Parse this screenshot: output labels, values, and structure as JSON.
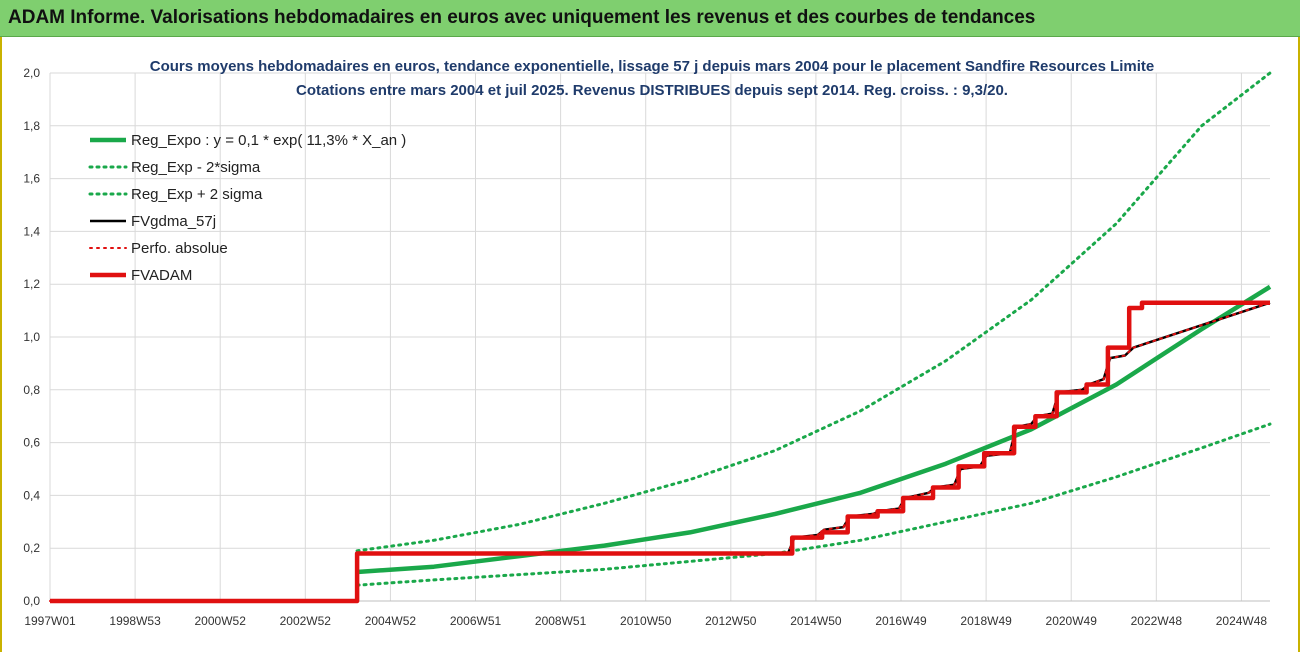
{
  "banner": {
    "title": "ADAM Informe. Valorisations hebdomadaires en euros avec uniquement les revenus et des courbes de tendances"
  },
  "colors": {
    "banner_bg": "#7fcf6f",
    "green": "#1aa84a",
    "black": "#000000",
    "red": "#e01010",
    "grid": "#d9d9d9"
  },
  "chart_data": {
    "type": "line",
    "title": "Cours moyens hebdomadaires en euros, tendance exponentielle, lissage 57 j depuis mars 2004 pour le placement Sandfire Resources Limite",
    "subtitle": "Cotations entre mars 2004 et juil 2025. Revenus DISTRIBUES depuis sept 2014. Reg. croiss. : 9,3/20.",
    "xlabel": "",
    "ylabel": "",
    "x_tick_labels": [
      "1997W01",
      "1998W53",
      "2000W52",
      "2002W52",
      "2004W52",
      "2006W51",
      "2008W51",
      "2010W50",
      "2012W50",
      "2014W50",
      "2016W49",
      "2018W49",
      "2020W49",
      "2022W48",
      "2024W48"
    ],
    "y_tick_labels": [
      "0,0",
      "0,2",
      "0,4",
      "0,6",
      "0,8",
      "1,0",
      "1,2",
      "1,4",
      "1,6",
      "1,8",
      "2,0"
    ],
    "xlim": [
      1997.0,
      2025.6
    ],
    "ylim": [
      0,
      2.0
    ],
    "grid": true,
    "legend_position": "top-left",
    "series": [
      {
        "name": "Reg_Expo : y = 0,1 * exp( 11,3% *  X_an )",
        "style": "solid-thick",
        "color": "#1aa84a",
        "x": [
          2004.2,
          2006,
          2008,
          2010,
          2012,
          2014,
          2016,
          2018,
          2020,
          2022,
          2024,
          2025.6
        ],
        "y": [
          0.11,
          0.13,
          0.17,
          0.21,
          0.26,
          0.33,
          0.41,
          0.52,
          0.65,
          0.82,
          1.03,
          1.19
        ]
      },
      {
        "name": "Reg_Exp - 2*sigma",
        "style": "dotted",
        "color": "#1aa84a",
        "x": [
          2004.2,
          2006,
          2008,
          2010,
          2012,
          2014,
          2016,
          2018,
          2020,
          2022,
          2024,
          2025.6
        ],
        "y": [
          0.06,
          0.08,
          0.1,
          0.12,
          0.15,
          0.18,
          0.23,
          0.3,
          0.37,
          0.47,
          0.58,
          0.67
        ]
      },
      {
        "name": "Reg_Exp + 2 sigma",
        "style": "dotted",
        "color": "#1aa84a",
        "x": [
          2004.2,
          2006,
          2008,
          2010,
          2012,
          2014,
          2016,
          2018,
          2020,
          2022,
          2024,
          2025.6
        ],
        "y": [
          0.19,
          0.23,
          0.29,
          0.37,
          0.46,
          0.57,
          0.72,
          0.91,
          1.14,
          1.43,
          1.8,
          2.0
        ]
      },
      {
        "name": "FVgdma_57j",
        "style": "solid",
        "color": "#000000",
        "x": [
          1997.0,
          2004.2,
          2004.2,
          2014.3,
          2014.45,
          2015.0,
          2015.15,
          2015.6,
          2015.75,
          2016.3,
          2016.45,
          2016.9,
          2017.05,
          2017.6,
          2017.75,
          2018.2,
          2018.35,
          2018.8,
          2018.95,
          2019.5,
          2019.65,
          2020.0,
          2020.15,
          2020.5,
          2020.65,
          2021.2,
          2021.35,
          2021.7,
          2021.85,
          2022.2,
          2022.4,
          2025.6
        ],
        "y": [
          0.0,
          0.0,
          0.18,
          0.18,
          0.24,
          0.25,
          0.27,
          0.28,
          0.32,
          0.33,
          0.34,
          0.35,
          0.39,
          0.41,
          0.43,
          0.44,
          0.5,
          0.51,
          0.55,
          0.56,
          0.66,
          0.67,
          0.7,
          0.71,
          0.79,
          0.8,
          0.82,
          0.84,
          0.92,
          0.93,
          0.96,
          1.13
        ]
      },
      {
        "name": "Perfo. absolue",
        "style": "dotted",
        "color": "#e01010",
        "x": [
          1997.0,
          2004.2,
          2004.2,
          2014.3,
          2014.45,
          2015.0,
          2015.15,
          2015.6,
          2015.75,
          2016.3,
          2016.45,
          2016.9,
          2017.05,
          2017.6,
          2017.75,
          2018.2,
          2018.35,
          2018.8,
          2018.95,
          2019.5,
          2019.65,
          2020.0,
          2020.15,
          2020.5,
          2020.65,
          2021.2,
          2021.35,
          2021.7,
          2021.85,
          2022.2,
          2022.4,
          2025.6
        ],
        "y": [
          0.0,
          0.0,
          0.18,
          0.18,
          0.24,
          0.25,
          0.27,
          0.28,
          0.32,
          0.33,
          0.34,
          0.35,
          0.39,
          0.41,
          0.43,
          0.44,
          0.5,
          0.51,
          0.55,
          0.56,
          0.66,
          0.67,
          0.7,
          0.71,
          0.79,
          0.8,
          0.82,
          0.84,
          0.92,
          0.93,
          0.96,
          1.13
        ]
      },
      {
        "name": "FVADAM",
        "style": "solid-thick",
        "color": "#e01010",
        "x": [
          1997.0,
          2004.2,
          2004.2,
          2014.4,
          2014.4,
          2015.1,
          2015.1,
          2015.7,
          2015.7,
          2016.4,
          2016.4,
          2017.0,
          2017.0,
          2017.7,
          2017.7,
          2018.3,
          2018.3,
          2018.9,
          2018.9,
          2019.6,
          2019.6,
          2020.1,
          2020.1,
          2020.6,
          2020.6,
          2021.3,
          2021.3,
          2021.8,
          2021.8,
          2022.3,
          2022.3,
          2022.6,
          2022.6,
          2025.6
        ],
        "y": [
          0.0,
          0.0,
          0.18,
          0.18,
          0.24,
          0.24,
          0.26,
          0.26,
          0.32,
          0.32,
          0.34,
          0.34,
          0.39,
          0.39,
          0.43,
          0.43,
          0.51,
          0.51,
          0.56,
          0.56,
          0.66,
          0.66,
          0.7,
          0.7,
          0.79,
          0.79,
          0.82,
          0.82,
          0.96,
          0.96,
          1.11,
          1.11,
          1.13,
          1.13
        ]
      }
    ]
  }
}
